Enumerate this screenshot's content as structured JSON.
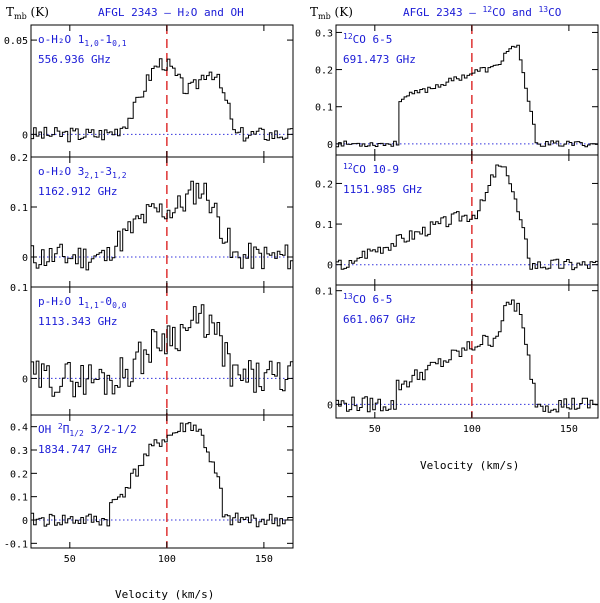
{
  "figure": {
    "left_title": "AFGL 2343 – H₂O and OH",
    "right_title_parts": [
      "AFGL 2343 – ",
      "12",
      "CO and ",
      "13",
      "CO"
    ],
    "y_axis_label_main": "T",
    "y_axis_label_sub": "mb",
    "y_axis_label_unit": " (K)",
    "x_axis_label": "Velocity (km/s)"
  },
  "colors": {
    "spectrum": "#000000",
    "baseline": "#3333dd",
    "marker": "#e04040",
    "label": "#1a1ad6"
  },
  "chart_data": [
    {
      "type": "line",
      "id": "oh2o-1",
      "label_main": "o-H₂O 1",
      "label_sub1": "1,0",
      "label_mid": "-1",
      "label_sub2": "0,1",
      "freq": "556.936 GHz",
      "xlim": [
        30,
        165
      ],
      "ylim": [
        -0.012,
        0.058
      ],
      "yticks": [
        0,
        0.05
      ],
      "yticklabels": [
        "0",
        "0.05"
      ],
      "xticks": [
        50,
        100,
        150
      ],
      "xticklabels": [
        "50",
        "100",
        "150"
      ],
      "marker_x": 100,
      "profile": {
        "start": 65,
        "end": 133,
        "peaks": [
          {
            "c": 97,
            "w": 10,
            "a": 0.038
          },
          {
            "c": 122,
            "w": 7,
            "a": 0.032
          }
        ],
        "noise": 0.004,
        "seed": 3
      }
    },
    {
      "type": "line",
      "id": "oh2o-2",
      "label_main": "o-H₂O 3",
      "label_sub1": "2,1",
      "label_mid": "-3",
      "label_sub2": "1,2",
      "freq": "1162.912 GHz",
      "xlim": [
        30,
        165
      ],
      "ylim": [
        -0.06,
        0.2
      ],
      "yticks": [
        0,
        0.1,
        0.2
      ],
      "yticklabels": [
        "0",
        "0.1",
        "0.2"
      ],
      "xticks": [
        50,
        100,
        150
      ],
      "xticklabels": [
        "50",
        "100",
        "150"
      ],
      "marker_x": 100,
      "profile": {
        "start": 70,
        "end": 132,
        "peaks": [
          {
            "c": 95,
            "w": 14,
            "a": 0.09
          },
          {
            "c": 118,
            "w": 8,
            "a": 0.11
          }
        ],
        "noise": 0.028,
        "seed": 11
      }
    },
    {
      "type": "line",
      "id": "ph2o",
      "label_main": "p-H₂O 1",
      "label_sub1": "1,1",
      "label_mid": "-0",
      "label_sub2": "0,0",
      "freq": "1113.343 GHz",
      "xlim": [
        30,
        165
      ],
      "ylim": [
        -0.04,
        0.1
      ],
      "yticks": [
        0,
        0.1
      ],
      "yticklabels": [
        "0",
        "0.1"
      ],
      "xticks": [
        50,
        100,
        150
      ],
      "xticklabels": [
        "50",
        "100",
        "150"
      ],
      "marker_x": 100,
      "profile": {
        "start": 75,
        "end": 132,
        "peaks": [
          {
            "c": 100,
            "w": 12,
            "a": 0.045
          },
          {
            "c": 120,
            "w": 8,
            "a": 0.05
          }
        ],
        "noise": 0.02,
        "seed": 29
      }
    },
    {
      "type": "line",
      "id": "oh",
      "label_main": "OH ",
      "label_sup": "2",
      "label_pi": "Π",
      "label_sub1": "1/2",
      "label_mid": " 3/2-1/2",
      "label_sub2": "",
      "freq": "1834.747 GHz",
      "xlim": [
        30,
        165
      ],
      "ylim": [
        -0.12,
        0.45
      ],
      "yticks": [
        -0.1,
        0,
        0.1,
        0.2,
        0.3,
        0.4
      ],
      "yticklabels": [
        "-0.1",
        "0",
        "0.1",
        "0.2",
        "0.3",
        "0.4"
      ],
      "xticks": [
        50,
        100,
        150
      ],
      "xticklabels": [
        "50",
        "100",
        "150"
      ],
      "marker_x": 100,
      "profile": {
        "start": 70,
        "end": 128,
        "peaks": [
          {
            "c": 98,
            "w": 15,
            "a": 0.33
          },
          {
            "c": 116,
            "w": 8,
            "a": 0.22
          }
        ],
        "noise": 0.03,
        "seed": 41
      }
    },
    {
      "type": "line",
      "id": "co12-65",
      "label_iso": "12",
      "label_main": "CO 6-5",
      "freq": "691.473 GHz",
      "xlim": [
        30,
        165
      ],
      "ylim": [
        -0.03,
        0.32
      ],
      "yticks": [
        0,
        0.1,
        0.2,
        0.3
      ],
      "yticklabels": [
        "0",
        "0.1",
        "0.2",
        "0.3"
      ],
      "xticks": [
        50,
        100,
        150
      ],
      "xticklabels": [
        "50",
        "100",
        "150"
      ],
      "marker_x": 100,
      "profile": {
        "start": 62,
        "end": 133,
        "ramp": [
          0.12,
          0.2,
          0.26
        ],
        "noise": 0.008,
        "seed": 53
      }
    },
    {
      "type": "line",
      "id": "co12-109",
      "label_iso": "12",
      "label_main": "CO 10-9",
      "freq": "1151.985 GHz",
      "xlim": [
        30,
        165
      ],
      "ylim": [
        -0.05,
        0.27
      ],
      "yticks": [
        0,
        0.1,
        0.2
      ],
      "yticklabels": [
        "0",
        "0.1",
        "0.2"
      ],
      "xticks": [
        50,
        100,
        150
      ],
      "xticklabels": [
        "50",
        "100",
        "150"
      ],
      "marker_x": 100,
      "profile": {
        "start": 40,
        "end": 130,
        "ramp": [
          0.02,
          0.12,
          0.24
        ],
        "noise": 0.016,
        "seed": 67
      }
    },
    {
      "type": "line",
      "id": "co13-65",
      "label_iso": "13",
      "label_main": "CO 6-5",
      "freq": "661.067 GHz",
      "xlim": [
        30,
        165
      ],
      "ylim": [
        -0.012,
        0.105
      ],
      "yticks": [
        0,
        0.1
      ],
      "yticklabels": [
        "0",
        "0.1"
      ],
      "xticks": [
        50,
        100,
        150
      ],
      "xticklabels": [
        "50",
        "100",
        "150"
      ],
      "marker_x": 100,
      "profile": {
        "start": 60,
        "end": 133,
        "ramp": [
          0.015,
          0.055,
          0.09
        ],
        "noise": 0.007,
        "seed": 79
      }
    }
  ]
}
